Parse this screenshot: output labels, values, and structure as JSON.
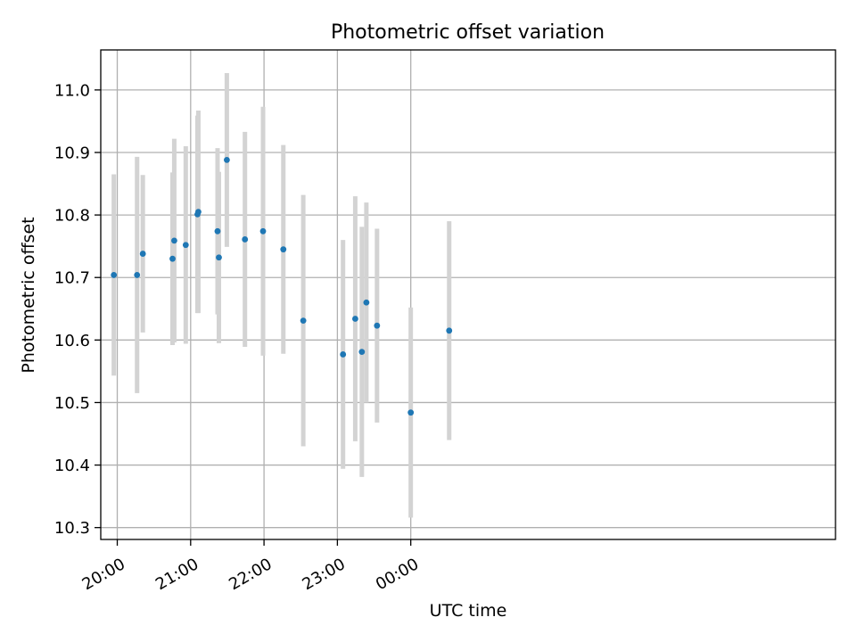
{
  "chart_data": {
    "type": "scatter",
    "title": "Photometric offset variation",
    "xlabel": "UTC time",
    "ylabel": "Photometric offset",
    "xlim_minutes": [
      1186.5,
      1787.3
    ],
    "ylim": [
      10.281,
      11.064
    ],
    "x_ticks": [
      {
        "minutes": 1200,
        "label": "20:00"
      },
      {
        "minutes": 1260,
        "label": "21:00"
      },
      {
        "minutes": 1320,
        "label": "22:00"
      },
      {
        "minutes": 1380,
        "label": "23:00"
      },
      {
        "minutes": 1440,
        "label": "00:00"
      }
    ],
    "y_ticks": [
      {
        "value": 10.3,
        "label": "10.3"
      },
      {
        "value": 10.4,
        "label": "10.4"
      },
      {
        "value": 10.5,
        "label": "10.5"
      },
      {
        "value": 10.6,
        "label": "10.6"
      },
      {
        "value": 10.7,
        "label": "10.7"
      },
      {
        "value": 10.8,
        "label": "10.8"
      },
      {
        "value": 10.9,
        "label": "10.9"
      },
      {
        "value": 11.0,
        "label": "11.0"
      }
    ],
    "grid": true,
    "colors": {
      "point": "#1f77b4",
      "errorbar": "#d3d3d3",
      "grid": "#b0b0b0",
      "axes": "#000000"
    },
    "series": [
      {
        "name": "offset",
        "points": [
          {
            "x": 1197.2,
            "y": 10.704,
            "err": 0.161
          },
          {
            "x": 1216.2,
            "y": 10.704,
            "err": 0.189
          },
          {
            "x": 1220.9,
            "y": 10.738,
            "err": 0.126
          },
          {
            "x": 1245.2,
            "y": 10.73,
            "err": 0.138
          },
          {
            "x": 1246.6,
            "y": 10.759,
            "err": 0.163
          },
          {
            "x": 1256.0,
            "y": 10.752,
            "err": 0.158
          },
          {
            "x": 1265.6,
            "y": 10.801,
            "err": 0.158
          },
          {
            "x": 1266.3,
            "y": 10.805,
            "err": 0.162
          },
          {
            "x": 1282.0,
            "y": 10.774,
            "err": 0.133
          },
          {
            "x": 1283.1,
            "y": 10.732,
            "err": 0.137
          },
          {
            "x": 1289.6,
            "y": 10.888,
            "err": 0.139
          },
          {
            "x": 1304.4,
            "y": 10.761,
            "err": 0.172
          },
          {
            "x": 1319.2,
            "y": 10.774,
            "err": 0.199
          },
          {
            "x": 1335.8,
            "y": 10.745,
            "err": 0.167
          },
          {
            "x": 1352.1,
            "y": 10.631,
            "err": 0.201
          },
          {
            "x": 1384.6,
            "y": 10.577,
            "err": 0.183
          },
          {
            "x": 1394.6,
            "y": 10.634,
            "err": 0.196
          },
          {
            "x": 1400.0,
            "y": 10.581,
            "err": 0.2
          },
          {
            "x": 1403.7,
            "y": 10.66,
            "err": 0.16
          },
          {
            "x": 1412.4,
            "y": 10.623,
            "err": 0.155
          },
          {
            "x": 1440.0,
            "y": 10.484,
            "err": 0.168
          },
          {
            "x": 1471.4,
            "y": 10.615,
            "err": 0.175
          }
        ]
      }
    ]
  }
}
